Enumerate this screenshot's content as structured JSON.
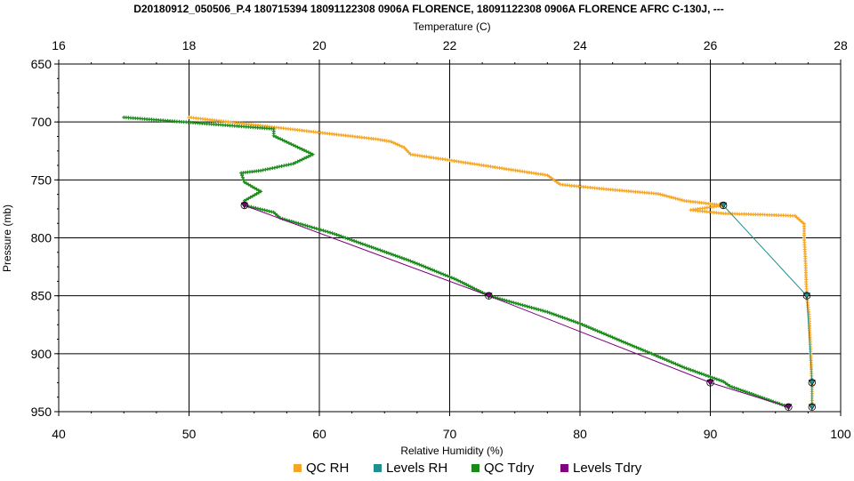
{
  "chart_data": {
    "type": "line",
    "title": "D20180912_050506_P.4 180715394 18091122308 0906A FLORENCE, 18091122308 0906A FLORENCE AFRC C-130J, ---",
    "top_axis": {
      "label": "Temperature (C)",
      "range": [
        16,
        28
      ],
      "ticks": [
        16,
        18,
        20,
        22,
        24,
        26,
        28
      ]
    },
    "bottom_axis": {
      "label": "Relative Humidity (%)",
      "range": [
        40,
        100
      ],
      "ticks": [
        40,
        50,
        60,
        70,
        80,
        90,
        100
      ]
    },
    "y_axis": {
      "label": "Pressure (mb)",
      "range": [
        650,
        950
      ],
      "inverted": true,
      "ticks": [
        650,
        700,
        750,
        800,
        850,
        900,
        950
      ]
    },
    "grid": true,
    "legend": {
      "placement": "bottom"
    },
    "series": [
      {
        "name": "QC RH",
        "axis": "rh",
        "color": "#f5a623",
        "marker": "plus",
        "points": [
          [
            50,
            696
          ],
          [
            64.5,
            715
          ],
          [
            65.5,
            717
          ],
          [
            66.5,
            722
          ],
          [
            67,
            728
          ],
          [
            70,
            733
          ],
          [
            74,
            740
          ],
          [
            77.5,
            746
          ],
          [
            78.5,
            754
          ],
          [
            82,
            758
          ],
          [
            86,
            762
          ],
          [
            88,
            768
          ],
          [
            89.5,
            770
          ],
          [
            91,
            772
          ],
          [
            88.5,
            776
          ],
          [
            91,
            779
          ],
          [
            94,
            780
          ],
          [
            96.5,
            781
          ],
          [
            97.2,
            788
          ],
          [
            97.2,
            800
          ],
          [
            97.3,
            820
          ],
          [
            97.4,
            850
          ],
          [
            97.6,
            870
          ],
          [
            97.7,
            900
          ],
          [
            97.8,
            925
          ],
          [
            97.8,
            946
          ]
        ]
      },
      {
        "name": "Levels RH",
        "axis": "rh",
        "color": "#1f8f8f",
        "marker": "triangle",
        "points": [
          [
            91,
            772
          ],
          [
            97.4,
            850
          ],
          [
            97.8,
            925
          ],
          [
            97.8,
            946
          ]
        ]
      },
      {
        "name": "QC Tdry",
        "axis": "temp",
        "color": "#1a8a1a",
        "marker": "plus",
        "points": [
          [
            17,
            696
          ],
          [
            19.3,
            706
          ],
          [
            19.3,
            712
          ],
          [
            19.6,
            720
          ],
          [
            19.9,
            728
          ],
          [
            19.6,
            736
          ],
          [
            19.1,
            742
          ],
          [
            18.8,
            744
          ],
          [
            18.85,
            752
          ],
          [
            19.1,
            760
          ],
          [
            18.85,
            768
          ],
          [
            18.85,
            772
          ],
          [
            19.3,
            778
          ],
          [
            19.4,
            783
          ],
          [
            20.2,
            796
          ],
          [
            21.4,
            820
          ],
          [
            22.1,
            836
          ],
          [
            22.6,
            850
          ],
          [
            23.5,
            864
          ],
          [
            24.0,
            874
          ],
          [
            24.8,
            893
          ],
          [
            25.1,
            900
          ],
          [
            25.6,
            912
          ],
          [
            26.2,
            924
          ],
          [
            26.3,
            928
          ],
          [
            26.6,
            934
          ],
          [
            27.1,
            944
          ],
          [
            27.2,
            946
          ]
        ]
      },
      {
        "name": "Levels Tdry",
        "axis": "temp",
        "color": "#800080",
        "marker": "triangle",
        "points": [
          [
            18.85,
            772
          ],
          [
            22.6,
            850
          ],
          [
            26.0,
            925
          ],
          [
            27.2,
            946
          ]
        ]
      }
    ]
  }
}
